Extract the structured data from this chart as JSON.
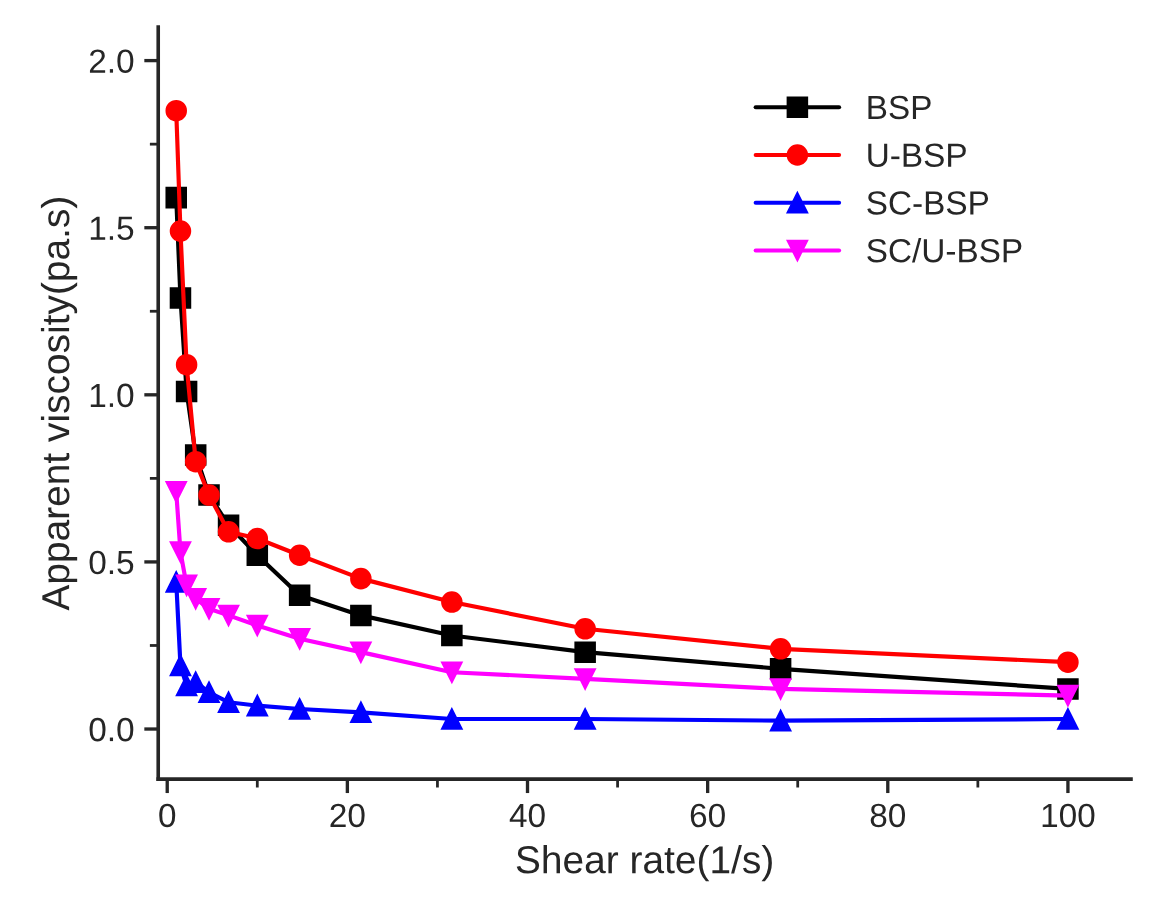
{
  "chart_data": {
    "type": "line",
    "xlabel": "Shear rate(1/s)",
    "ylabel": "Apparent viscosity(pa.s)",
    "x": [
      1,
      1.47,
      2.15,
      3.16,
      4.64,
      6.81,
      10,
      14.7,
      21.5,
      31.6,
      46.4,
      68.1,
      100
    ],
    "series": [
      {
        "name": "BSP",
        "color": "#000000",
        "marker": "square",
        "values": [
          1.59,
          1.29,
          1.01,
          0.82,
          0.7,
          0.61,
          0.52,
          0.4,
          0.34,
          0.28,
          0.23,
          0.18,
          0.12
        ]
      },
      {
        "name": "U-BSP",
        "color": "#ff0000",
        "marker": "circle",
        "values": [
          1.85,
          1.49,
          1.09,
          0.8,
          0.7,
          0.59,
          0.57,
          0.52,
          0.45,
          0.38,
          0.3,
          0.24,
          0.2
        ]
      },
      {
        "name": "SC-BSP",
        "color": "#0000ff",
        "marker": "triangle",
        "values": [
          0.44,
          0.19,
          0.13,
          0.14,
          0.11,
          0.08,
          0.07,
          0.06,
          0.05,
          0.03,
          0.03,
          0.025,
          0.03
        ]
      },
      {
        "name": "SC/U-BSP",
        "color": "#ff00ff",
        "marker": "triangle_down",
        "values": [
          0.71,
          0.53,
          0.43,
          0.39,
          0.36,
          0.34,
          0.31,
          0.27,
          0.23,
          0.17,
          0.15,
          0.12,
          0.1
        ]
      }
    ],
    "xlim": [
      -1,
      107
    ],
    "ylim": [
      -0.15,
      2.1
    ],
    "xticks": [
      0,
      20,
      40,
      60,
      80,
      100
    ],
    "yticks": [
      {
        "value": 0,
        "label": "0.0"
      },
      {
        "value": 0.5,
        "label": "0.5"
      },
      {
        "value": 1,
        "label": "1.0"
      },
      {
        "value": 1.5,
        "label": "1.5"
      },
      {
        "value": 2,
        "label": "2.0"
      }
    ],
    "legend": "top right",
    "grid": false,
    "line_style": "solid"
  }
}
